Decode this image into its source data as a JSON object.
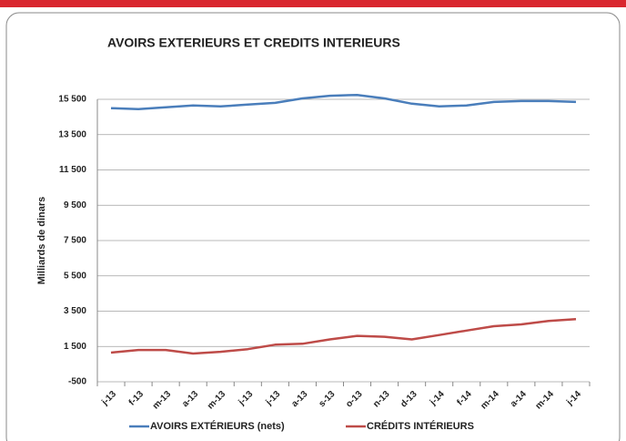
{
  "chart_data": {
    "type": "line",
    "title": "AVOIRS EXTERIEURS ET CREDITS INTERIEURS",
    "y_label": "Milliards de dinars",
    "categories": [
      "j-13",
      "f-13",
      "m-13",
      "a-13",
      "m-13",
      "j-13",
      "j-13",
      "a-13",
      "s-13",
      "o-13",
      "n-13",
      "d-13",
      "j-14",
      "f-14",
      "m-14",
      "a-14",
      "m-14",
      "j-14"
    ],
    "series": [
      {
        "name": "AVOIRS EXTÉRIEURS (nets)",
        "color": "#4a7ebb",
        "values": [
          15000,
          14950,
          15050,
          15150,
          15100,
          15200,
          15300,
          15550,
          15700,
          15750,
          15550,
          15250,
          15100,
          15150,
          15350,
          15400,
          15400,
          15350
        ]
      },
      {
        "name": "CRÉDITS INTÉRIEURS",
        "color": "#be4b48",
        "values": [
          1150,
          1300,
          1300,
          1100,
          1200,
          1350,
          1600,
          1650,
          1900,
          2100,
          2050,
          1900,
          2150,
          2400,
          2650,
          2750,
          2950,
          3050
        ]
      }
    ],
    "ylim": [
      -500,
      15500
    ],
    "yticks": [
      -500,
      {
        "value": 1500,
        "label": "1 500"
      },
      {
        "value": 3500,
        "label": "3 500"
      },
      {
        "value": 5500,
        "label": "5 500"
      },
      {
        "value": 7500,
        "label": "7 500"
      },
      {
        "value": 9500,
        "label": "9 500"
      },
      {
        "value": 11500,
        "label": "11 500"
      },
      {
        "value": 13500,
        "label": "13 500"
      },
      {
        "value": 15500,
        "label": "15 500"
      }
    ],
    "grid": true,
    "legend": "bottom"
  }
}
